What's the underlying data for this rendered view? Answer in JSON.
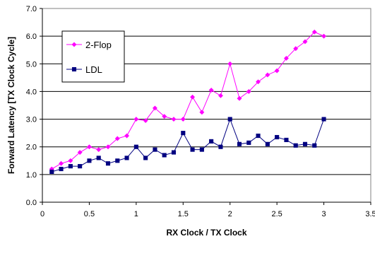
{
  "chart_data": {
    "type": "line",
    "xlabel": "RX Clock / TX Clock",
    "ylabel": "Forward Latency [TX Clock Cycle]",
    "xlim": [
      0,
      3.5
    ],
    "ylim": [
      0,
      7
    ],
    "x_ticks": [
      0,
      0.5,
      1,
      1.5,
      2,
      2.5,
      3,
      3.5
    ],
    "x_tick_labels": [
      "0",
      "0.5",
      "1",
      "1.5",
      "2",
      "2.5",
      "3",
      "3.5"
    ],
    "y_ticks": [
      0,
      1,
      2,
      3,
      4,
      5,
      6,
      7
    ],
    "y_tick_labels": [
      "0.0",
      "1.0",
      "2.0",
      "3.0",
      "4.0",
      "5.0",
      "6.0",
      "7.0"
    ],
    "grid": "horizontal",
    "legend_position": "top-left",
    "x": [
      0.1,
      0.2,
      0.3,
      0.4,
      0.5,
      0.6,
      0.7,
      0.8,
      0.9,
      1.0,
      1.1,
      1.2,
      1.3,
      1.4,
      1.5,
      1.6,
      1.7,
      1.8,
      1.9,
      2.0,
      2.1,
      2.2,
      2.3,
      2.4,
      2.5,
      2.6,
      2.7,
      2.8,
      2.9,
      3.0
    ],
    "series": [
      {
        "name": "2-Flop",
        "color": "#ff00ff",
        "marker": "diamond",
        "values": [
          1.2,
          1.4,
          1.5,
          1.8,
          2.0,
          1.9,
          2.0,
          2.3,
          2.4,
          3.0,
          2.95,
          3.4,
          3.1,
          3.0,
          3.0,
          3.8,
          3.25,
          4.05,
          3.85,
          5.0,
          3.75,
          4.0,
          4.35,
          4.6,
          4.75,
          5.2,
          5.55,
          5.8,
          6.15,
          6.0
        ]
      },
      {
        "name": "LDL",
        "color": "#000080",
        "marker": "square",
        "values": [
          1.1,
          1.2,
          1.3,
          1.3,
          1.5,
          1.6,
          1.4,
          1.5,
          1.6,
          2.0,
          1.6,
          1.9,
          1.7,
          1.8,
          2.5,
          1.9,
          1.9,
          2.2,
          2.0,
          3.0,
          2.1,
          2.15,
          2.4,
          2.1,
          2.35,
          2.25,
          2.05,
          2.1,
          2.05,
          3.0
        ]
      }
    ]
  }
}
